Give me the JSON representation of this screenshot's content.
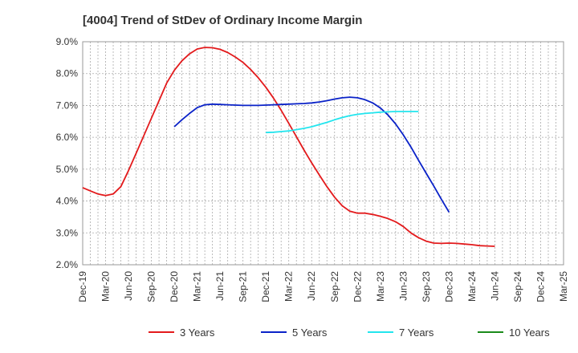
{
  "chart_data": {
    "type": "line",
    "title": "[4004]  Trend of StDev of Ordinary Income Margin",
    "xlabel": "",
    "ylabel": "",
    "x_ticks": [
      "Dec-19",
      "Mar-20",
      "Jun-20",
      "Sep-20",
      "Dec-20",
      "Mar-21",
      "Jun-21",
      "Sep-21",
      "Dec-21",
      "Mar-22",
      "Jun-22",
      "Sep-22",
      "Dec-22",
      "Mar-23",
      "Jun-23",
      "Sep-23",
      "Dec-23",
      "Mar-24",
      "Jun-24",
      "Sep-24",
      "Dec-24",
      "Mar-25"
    ],
    "y_ticks": [
      "2.0%",
      "3.0%",
      "4.0%",
      "5.0%",
      "6.0%",
      "7.0%",
      "8.0%",
      "9.0%"
    ],
    "ylim": [
      2.0,
      9.0
    ],
    "grid": true,
    "legend_position": "bottom",
    "series": [
      {
        "name": "3 Years",
        "color": "#e31a1c",
        "points": [
          [
            "Dec-19",
            4.42
          ],
          [
            "Jan-20",
            4.32
          ],
          [
            "Feb-20",
            4.22
          ],
          [
            "Mar-20",
            4.17
          ],
          [
            "Apr-20",
            4.22
          ],
          [
            "May-20",
            4.45
          ],
          [
            "Jun-20",
            4.95
          ],
          [
            "Jul-20",
            5.5
          ],
          [
            "Aug-20",
            6.05
          ],
          [
            "Sep-20",
            6.6
          ],
          [
            "Oct-20",
            7.15
          ],
          [
            "Nov-20",
            7.7
          ],
          [
            "Dec-20",
            8.1
          ],
          [
            "Jan-21",
            8.4
          ],
          [
            "Feb-21",
            8.62
          ],
          [
            "Mar-21",
            8.77
          ],
          [
            "Apr-21",
            8.82
          ],
          [
            "May-21",
            8.81
          ],
          [
            "Jun-21",
            8.76
          ],
          [
            "Jul-21",
            8.66
          ],
          [
            "Aug-21",
            8.52
          ],
          [
            "Sep-21",
            8.35
          ],
          [
            "Oct-21",
            8.13
          ],
          [
            "Nov-21",
            7.87
          ],
          [
            "Dec-21",
            7.57
          ],
          [
            "Jan-22",
            7.23
          ],
          [
            "Feb-22",
            6.85
          ],
          [
            "Mar-22",
            6.44
          ],
          [
            "Apr-22",
            6.02
          ],
          [
            "May-22",
            5.6
          ],
          [
            "Jun-22",
            5.2
          ],
          [
            "Jul-22",
            4.82
          ],
          [
            "Aug-22",
            4.45
          ],
          [
            "Sep-22",
            4.12
          ],
          [
            "Oct-22",
            3.85
          ],
          [
            "Nov-22",
            3.68
          ],
          [
            "Dec-22",
            3.62
          ],
          [
            "Jan-23",
            3.62
          ],
          [
            "Feb-23",
            3.58
          ],
          [
            "Mar-23",
            3.52
          ],
          [
            "Apr-23",
            3.45
          ],
          [
            "May-23",
            3.35
          ],
          [
            "Jun-23",
            3.2
          ],
          [
            "Jul-23",
            3.0
          ],
          [
            "Aug-23",
            2.85
          ],
          [
            "Sep-23",
            2.74
          ],
          [
            "Oct-23",
            2.68
          ],
          [
            "Nov-23",
            2.67
          ],
          [
            "Dec-23",
            2.68
          ],
          [
            "Jan-24",
            2.67
          ],
          [
            "Feb-24",
            2.65
          ],
          [
            "Mar-24",
            2.63
          ],
          [
            "Apr-24",
            2.6
          ],
          [
            "May-24",
            2.59
          ],
          [
            "Jun-24",
            2.58
          ]
        ]
      },
      {
        "name": "5 Years",
        "color": "#0a22c8",
        "points": [
          [
            "Dec-20",
            6.33
          ],
          [
            "Jan-21",
            6.55
          ],
          [
            "Feb-21",
            6.75
          ],
          [
            "Mar-21",
            6.93
          ],
          [
            "Apr-21",
            7.02
          ],
          [
            "May-21",
            7.04
          ],
          [
            "Jun-21",
            7.03
          ],
          [
            "Jul-21",
            7.02
          ],
          [
            "Aug-21",
            7.01
          ],
          [
            "Sep-21",
            7.0
          ],
          [
            "Oct-21",
            7.0
          ],
          [
            "Nov-21",
            7.0
          ],
          [
            "Dec-21",
            7.01
          ],
          [
            "Jan-22",
            7.02
          ],
          [
            "Feb-22",
            7.03
          ],
          [
            "Mar-22",
            7.04
          ],
          [
            "Apr-22",
            7.05
          ],
          [
            "May-22",
            7.06
          ],
          [
            "Jun-22",
            7.08
          ],
          [
            "Jul-22",
            7.11
          ],
          [
            "Aug-22",
            7.15
          ],
          [
            "Sep-22",
            7.2
          ],
          [
            "Oct-22",
            7.24
          ],
          [
            "Nov-22",
            7.26
          ],
          [
            "Dec-22",
            7.24
          ],
          [
            "Jan-23",
            7.18
          ],
          [
            "Feb-23",
            7.08
          ],
          [
            "Mar-23",
            6.92
          ],
          [
            "Apr-23",
            6.7
          ],
          [
            "May-23",
            6.42
          ],
          [
            "Jun-23",
            6.08
          ],
          [
            "Jul-23",
            5.7
          ],
          [
            "Aug-23",
            5.28
          ],
          [
            "Sep-23",
            4.87
          ],
          [
            "Oct-23",
            4.47
          ],
          [
            "Nov-23",
            4.05
          ],
          [
            "Dec-23",
            3.65
          ]
        ]
      },
      {
        "name": "7 Years",
        "color": "#22e5ee",
        "points": [
          [
            "Dec-21",
            6.15
          ],
          [
            "Jan-22",
            6.16
          ],
          [
            "Feb-22",
            6.18
          ],
          [
            "Mar-22",
            6.2
          ],
          [
            "Apr-22",
            6.24
          ],
          [
            "May-22",
            6.28
          ],
          [
            "Jun-22",
            6.33
          ],
          [
            "Jul-22",
            6.4
          ],
          [
            "Aug-22",
            6.47
          ],
          [
            "Sep-22",
            6.55
          ],
          [
            "Oct-22",
            6.62
          ],
          [
            "Nov-22",
            6.68
          ],
          [
            "Dec-22",
            6.72
          ],
          [
            "Jan-23",
            6.75
          ],
          [
            "Feb-23",
            6.77
          ],
          [
            "Mar-23",
            6.79
          ],
          [
            "Apr-23",
            6.8
          ],
          [
            "May-23",
            6.81
          ],
          [
            "Jun-23",
            6.81
          ],
          [
            "Jul-23",
            6.81
          ],
          [
            "Aug-23",
            6.81
          ]
        ]
      },
      {
        "name": "10 Years",
        "color": "#1a8a1a",
        "points": []
      }
    ]
  }
}
